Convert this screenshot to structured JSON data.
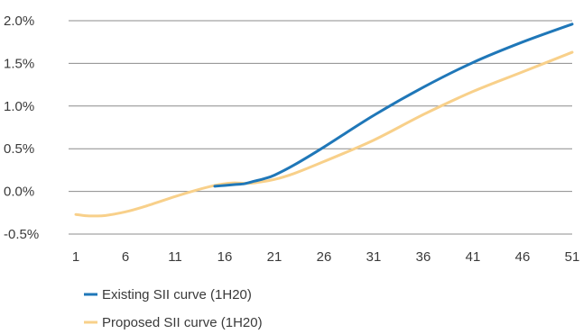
{
  "chart_data": {
    "type": "line",
    "title": "",
    "xlabel": "",
    "ylabel": "",
    "x": [
      1,
      6,
      11,
      16,
      21,
      26,
      31,
      36,
      41,
      46,
      51
    ],
    "xticks": [
      "1",
      "6",
      "11",
      "16",
      "21",
      "26",
      "31",
      "36",
      "41",
      "46",
      "51"
    ],
    "yticks": [
      "2.0%",
      "1.5%",
      "1.0%",
      "0.5%",
      "0.0%",
      "-0.5%"
    ],
    "ylim": [
      -0.5,
      2.0
    ],
    "xlim": [
      1,
      51
    ],
    "grid": "horizontal",
    "legend_position": "bottom-left",
    "series": [
      {
        "name": "Existing SII curve (1H20)",
        "color": "#1f77b8",
        "points": [
          [
            15,
            0.06
          ],
          [
            16,
            0.07
          ],
          [
            17,
            0.08
          ],
          [
            18,
            0.09
          ],
          [
            19,
            0.12
          ],
          [
            20,
            0.15
          ],
          [
            21,
            0.19
          ],
          [
            23,
            0.31
          ],
          [
            26,
            0.52
          ],
          [
            31,
            0.89
          ],
          [
            36,
            1.22
          ],
          [
            41,
            1.51
          ],
          [
            46,
            1.75
          ],
          [
            51,
            1.96
          ]
        ]
      },
      {
        "name": "Proposed SII curve (1H20)",
        "color": "#f8d08a",
        "points": [
          [
            1,
            -0.27
          ],
          [
            2,
            -0.285
          ],
          [
            3,
            -0.288
          ],
          [
            4,
            -0.282
          ],
          [
            6,
            -0.24
          ],
          [
            8,
            -0.175
          ],
          [
            11,
            -0.06
          ],
          [
            13,
            0.01
          ],
          [
            15,
            0.07
          ],
          [
            16,
            0.09
          ],
          [
            17,
            0.1
          ],
          [
            18,
            0.095
          ],
          [
            19,
            0.1
          ],
          [
            21,
            0.14
          ],
          [
            23,
            0.21
          ],
          [
            26,
            0.35
          ],
          [
            31,
            0.6
          ],
          [
            36,
            0.9
          ],
          [
            41,
            1.17
          ],
          [
            46,
            1.4
          ],
          [
            51,
            1.63
          ]
        ]
      }
    ]
  }
}
